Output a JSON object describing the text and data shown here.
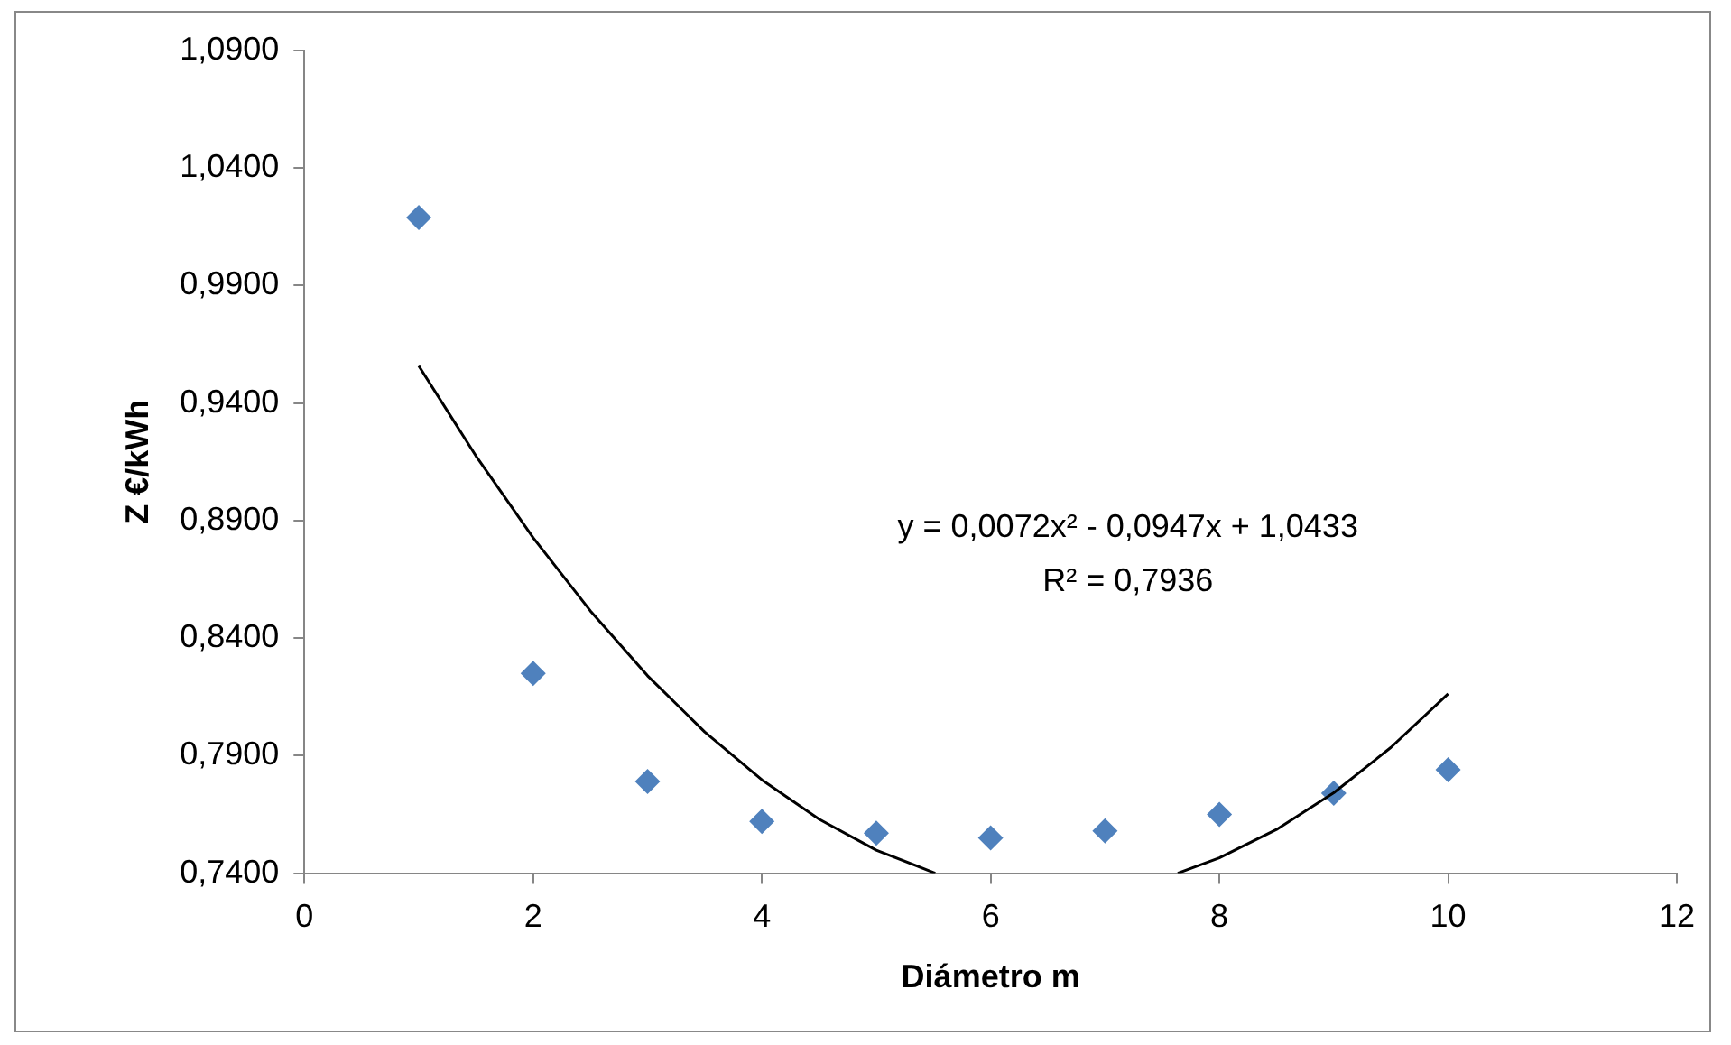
{
  "chart_data": {
    "type": "scatter",
    "xlabel": "Diámetro m",
    "ylabel": "Z €/kWh",
    "xlim": [
      0,
      12
    ],
    "xticks": [
      0,
      2,
      4,
      6,
      8,
      10,
      12
    ],
    "ylim": [
      0.74,
      1.09
    ],
    "yticks": [
      {
        "value": 0.74,
        "label": "0,7400"
      },
      {
        "value": 0.79,
        "label": "0,7900"
      },
      {
        "value": 0.84,
        "label": "0,8400"
      },
      {
        "value": 0.89,
        "label": "0,8900"
      },
      {
        "value": 0.94,
        "label": "0,9400"
      },
      {
        "value": 0.99,
        "label": "0,9900"
      },
      {
        "value": 1.04,
        "label": "1,0400"
      },
      {
        "value": 1.09,
        "label": "1,0900"
      }
    ],
    "grid": false,
    "legend": false,
    "marker": "diamond",
    "annotations": [
      "y = 0,0072x² - 0,0947x + 1,0433",
      "R² = 0,7936"
    ],
    "series": [
      {
        "type": "scatter",
        "color": "#4f81bd",
        "x": [
          1,
          2,
          3,
          4,
          5,
          6,
          7,
          8,
          9,
          10
        ],
        "values": [
          1.019,
          0.825,
          0.779,
          0.762,
          0.757,
          0.755,
          0.758,
          0.765,
          0.774,
          0.784
        ]
      },
      {
        "type": "line",
        "color": "#000000",
        "marker": "none",
        "line_style": "solid",
        "x": [
          1,
          1.5,
          2,
          2.5,
          3,
          3.5,
          4,
          4.5,
          5,
          5.5,
          5.516,
          6.5,
          7.636,
          8,
          8.5,
          9,
          9.5,
          10
        ],
        "values": [
          0.9558,
          0.9175,
          0.8827,
          0.8516,
          0.824,
          0.8001,
          0.7797,
          0.763,
          0.7498,
          0.7403,
          0.74,
          null,
          0.74,
          0.7465,
          0.7586,
          0.7742,
          0.7935,
          0.8163
        ]
      }
    ]
  }
}
